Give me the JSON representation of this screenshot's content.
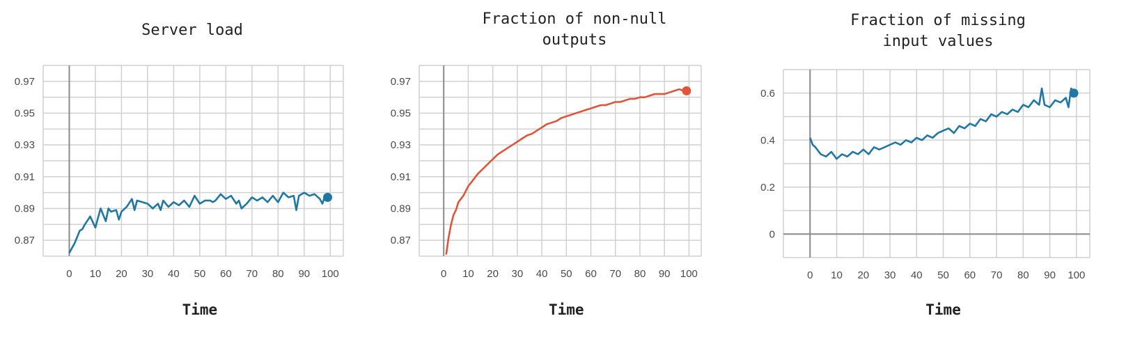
{
  "chart_data": [
    {
      "type": "line",
      "title": "Server load",
      "title_lines": [
        "Server load"
      ],
      "xlabel": "Time",
      "ylabel": "",
      "xlim": [
        -10,
        105
      ],
      "ylim": [
        0.86,
        0.98
      ],
      "xticks": [
        0,
        10,
        20,
        30,
        40,
        50,
        60,
        70,
        80,
        90,
        100
      ],
      "yticks": [
        0.87,
        0.89,
        0.91,
        0.93,
        0.95,
        0.97
      ],
      "ytick_labels": [
        "0.87",
        "0.89",
        "0.91",
        "0.93",
        "0.95",
        "0.97"
      ],
      "grid": true,
      "color": "#1f77a4",
      "end_marker": true,
      "series": [
        {
          "x": [
            0,
            2,
            4,
            5,
            6,
            8,
            10,
            11,
            12,
            14,
            15,
            16,
            18,
            19,
            20,
            22,
            24,
            25,
            26,
            28,
            30,
            32,
            34,
            35,
            36,
            38,
            40,
            42,
            44,
            46,
            48,
            50,
            52,
            54,
            55,
            56,
            58,
            60,
            62,
            64,
            65,
            66,
            68,
            70,
            72,
            74,
            76,
            78,
            80,
            82,
            84,
            86,
            87,
            88,
            90,
            92,
            94,
            96,
            97,
            98,
            99
          ],
          "y": [
            0.862,
            0.868,
            0.876,
            0.877,
            0.88,
            0.885,
            0.878,
            0.884,
            0.89,
            0.882,
            0.89,
            0.888,
            0.889,
            0.883,
            0.888,
            0.891,
            0.896,
            0.889,
            0.895,
            0.894,
            0.893,
            0.89,
            0.893,
            0.889,
            0.895,
            0.891,
            0.894,
            0.892,
            0.895,
            0.891,
            0.898,
            0.893,
            0.895,
            0.895,
            0.894,
            0.895,
            0.899,
            0.896,
            0.898,
            0.893,
            0.895,
            0.89,
            0.893,
            0.897,
            0.895,
            0.897,
            0.894,
            0.898,
            0.894,
            0.9,
            0.897,
            0.898,
            0.889,
            0.898,
            0.9,
            0.898,
            0.899,
            0.896,
            0.893,
            0.898,
            0.897
          ]
        }
      ]
    },
    {
      "type": "line",
      "title": "Fraction of non-null outputs",
      "title_lines": [
        "Fraction of non-null",
        "outputs"
      ],
      "xlabel": "Time",
      "ylabel": "",
      "xlim": [
        -10,
        105
      ],
      "ylim": [
        0.86,
        0.98
      ],
      "xticks": [
        0,
        10,
        20,
        30,
        40,
        50,
        60,
        70,
        80,
        90,
        100
      ],
      "yticks": [
        0.87,
        0.89,
        0.91,
        0.93,
        0.95,
        0.97
      ],
      "ytick_labels": [
        "0.87",
        "0.89",
        "0.91",
        "0.93",
        "0.95",
        "0.97"
      ],
      "grid": true,
      "color": "#e0543a",
      "end_marker": true,
      "series": [
        {
          "x": [
            1,
            2,
            3,
            4,
            5,
            6,
            8,
            10,
            12,
            14,
            16,
            18,
            20,
            22,
            24,
            26,
            28,
            30,
            32,
            34,
            36,
            38,
            40,
            42,
            44,
            46,
            48,
            50,
            52,
            54,
            56,
            58,
            60,
            62,
            64,
            66,
            68,
            70,
            72,
            74,
            76,
            78,
            80,
            82,
            84,
            86,
            88,
            90,
            92,
            94,
            96,
            98,
            99
          ],
          "y": [
            0.861,
            0.872,
            0.88,
            0.886,
            0.889,
            0.894,
            0.898,
            0.904,
            0.908,
            0.912,
            0.915,
            0.918,
            0.921,
            0.924,
            0.926,
            0.928,
            0.93,
            0.932,
            0.934,
            0.936,
            0.937,
            0.939,
            0.941,
            0.943,
            0.944,
            0.945,
            0.947,
            0.948,
            0.949,
            0.95,
            0.951,
            0.952,
            0.953,
            0.954,
            0.955,
            0.955,
            0.956,
            0.957,
            0.957,
            0.958,
            0.959,
            0.959,
            0.96,
            0.96,
            0.961,
            0.962,
            0.962,
            0.962,
            0.963,
            0.964,
            0.965,
            0.964,
            0.964
          ]
        }
      ]
    },
    {
      "type": "line",
      "title": "Fraction of missing input values",
      "title_lines": [
        "Fraction of missing",
        "input values"
      ],
      "xlabel": "Time",
      "ylabel": "",
      "xlim": [
        -10,
        105
      ],
      "ylim": [
        -0.1,
        0.7
      ],
      "xticks": [
        0,
        10,
        20,
        30,
        40,
        50,
        60,
        70,
        80,
        90,
        100
      ],
      "yticks": [
        0,
        0.2,
        0.4,
        0.6
      ],
      "ytick_labels": [
        "0",
        "0.2",
        "0.4",
        "0.6"
      ],
      "grid": true,
      "color": "#1f77a4",
      "end_marker": true,
      "series": [
        {
          "x": [
            0,
            1,
            2,
            4,
            6,
            8,
            10,
            12,
            14,
            16,
            18,
            20,
            22,
            24,
            26,
            28,
            30,
            32,
            34,
            36,
            38,
            40,
            42,
            44,
            46,
            48,
            50,
            52,
            54,
            56,
            58,
            60,
            62,
            64,
            66,
            68,
            70,
            72,
            74,
            76,
            78,
            80,
            82,
            84,
            86,
            87,
            88,
            90,
            92,
            94,
            96,
            97,
            98,
            99
          ],
          "y": [
            0.41,
            0.38,
            0.37,
            0.34,
            0.33,
            0.35,
            0.32,
            0.34,
            0.33,
            0.35,
            0.34,
            0.36,
            0.34,
            0.37,
            0.36,
            0.37,
            0.38,
            0.39,
            0.38,
            0.4,
            0.39,
            0.41,
            0.4,
            0.42,
            0.41,
            0.43,
            0.44,
            0.45,
            0.43,
            0.46,
            0.45,
            0.47,
            0.46,
            0.49,
            0.48,
            0.51,
            0.5,
            0.52,
            0.51,
            0.53,
            0.52,
            0.55,
            0.54,
            0.57,
            0.55,
            0.62,
            0.55,
            0.54,
            0.57,
            0.56,
            0.58,
            0.54,
            0.62,
            0.6
          ]
        }
      ]
    }
  ]
}
